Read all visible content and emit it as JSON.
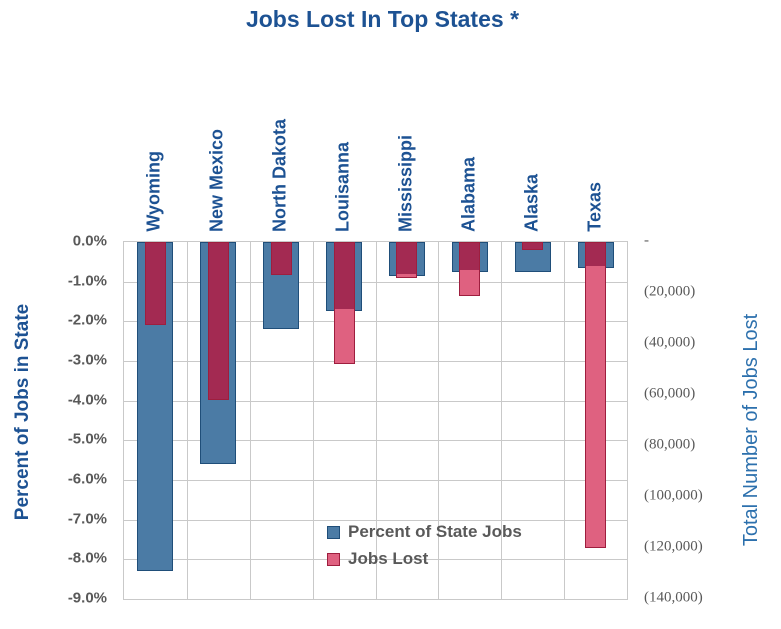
{
  "title": "Jobs Lost In Top States *",
  "chart_data": {
    "type": "bar",
    "categories": [
      "Wyoming",
      "New Mexico",
      "North Dakota",
      "Louisanna",
      "Mississippi",
      "Alabama",
      "Alaska",
      "Texas"
    ],
    "series": [
      {
        "name": "Percent of State Jobs",
        "axis": "left",
        "unit": "percent",
        "values": [
          -8.3,
          -5.6,
          -2.2,
          -1.75,
          -0.85,
          -0.75,
          -0.75,
          -0.65
        ]
      },
      {
        "name": "Jobs Lost",
        "axis": "right",
        "unit": "jobs",
        "values": [
          -32500,
          -62000,
          -13000,
          -48000,
          -14000,
          -21000,
          -3000,
          -120000
        ]
      }
    ],
    "left_axis": {
      "title": "Percent of Jobs in State",
      "min": -9.0,
      "max": 0.0,
      "step": 1.0,
      "tick_labels": [
        "0.0%",
        "-1.0%",
        "-2.0%",
        "-3.0%",
        "-4.0%",
        "-5.0%",
        "-6.0%",
        "-7.0%",
        "-8.0%",
        "-9.0%"
      ]
    },
    "right_axis": {
      "title": "Total Number of Jobs Lost",
      "min": -140000,
      "max": 0,
      "step": 20000,
      "tick_labels": [
        "-",
        "(20,000)",
        "(40,000)",
        "(60,000)",
        "(80,000)",
        "(100,000)",
        "(120,000)",
        "(140,000)"
      ]
    },
    "legend": {
      "position": "inside-bottom-center",
      "entries": [
        "Percent of State Jobs",
        "Jobs Lost"
      ]
    },
    "grid": true
  },
  "colors": {
    "accent_blue": "#1D5293",
    "axis_title_right": "#2C70AD",
    "tick_gray": "#595959",
    "grid": "#C9C9C9",
    "bar_blue": "#4B7BA5",
    "bar_blue_border": "#1F4E79",
    "bar_pink": "#DF6180",
    "bar_pink_border": "#9E1E3E",
    "bar_overlap": "#A32A52"
  }
}
